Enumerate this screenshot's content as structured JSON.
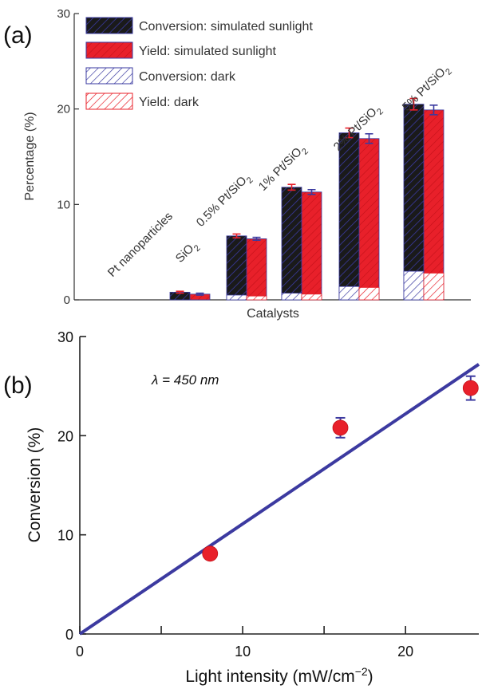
{
  "colors": {
    "conversion_fill": "#1a1a1a",
    "yield_fill": "#e8202a",
    "hatch_line": "#3a3aa0",
    "dark_hatch_conversion": "#3a3aa0",
    "dark_hatch_yield": "#e8202a",
    "error_conversion": "#e8202a",
    "error_yield": "#3a3aa0",
    "fit_line": "#3c3aa0",
    "point_fill": "#e8202a",
    "axis": "#333333"
  },
  "chart_data": [
    {
      "panel_label": "(a)",
      "type": "bar",
      "xlabel": "Catalysts",
      "ylabel": "Percentage (%)",
      "ylim": [
        0,
        30
      ],
      "yticks": [
        "0",
        "10",
        "20",
        "30"
      ],
      "categories": [
        {
          "main": "Pt nanoparticles",
          "sub": ""
        },
        {
          "main": "SiO",
          "sub": "2"
        },
        {
          "main": "0.5% Pt/SiO",
          "sub": "2"
        },
        {
          "main": "1% Pt/SiO",
          "sub": "2"
        },
        {
          "main": "2% Pt/SiO",
          "sub": "2"
        },
        {
          "main": "5% Pt/SiO",
          "sub": "2"
        }
      ],
      "series": [
        {
          "name": "Conversion: simulated sunlight",
          "values": [
            0,
            0.8,
            6.7,
            11.8,
            17.5,
            20.5
          ],
          "errors": [
            0,
            0.1,
            0.2,
            0.3,
            0.5,
            0.6
          ]
        },
        {
          "name": "Yield: simulated sunlight",
          "values": [
            0,
            0.6,
            6.4,
            11.3,
            16.9,
            19.9
          ],
          "errors": [
            0,
            0.1,
            0.15,
            0.25,
            0.5,
            0.5
          ]
        },
        {
          "name": "Conversion: dark",
          "values": [
            0,
            0,
            0.5,
            0.7,
            1.4,
            3.0
          ]
        },
        {
          "name": "Yield: dark",
          "values": [
            0,
            0,
            0.4,
            0.6,
            1.3,
            2.8
          ]
        }
      ],
      "legend_position": "top-left"
    },
    {
      "panel_label": "(b)",
      "type": "scatter",
      "annotation": "λ = 450 nm",
      "xlabel_main": "Light intensity (mW/cm",
      "xlabel_sup": "−2",
      "xlabel_end": ")",
      "ylabel": "Conversion (%)",
      "xlim": [
        0,
        24.5
      ],
      "ylim": [
        0,
        30
      ],
      "xticks": [
        "0",
        "10",
        "20"
      ],
      "yticks": [
        "0",
        "10",
        "20",
        "30"
      ],
      "points": [
        {
          "x": 8,
          "y": 8.1,
          "err": 0.4
        },
        {
          "x": 16,
          "y": 20.8,
          "err": 1.0
        },
        {
          "x": 24,
          "y": 24.8,
          "err": 1.2
        }
      ],
      "fit_line": {
        "x": [
          0,
          24.5
        ],
        "y": [
          0,
          27.2
        ]
      }
    }
  ]
}
